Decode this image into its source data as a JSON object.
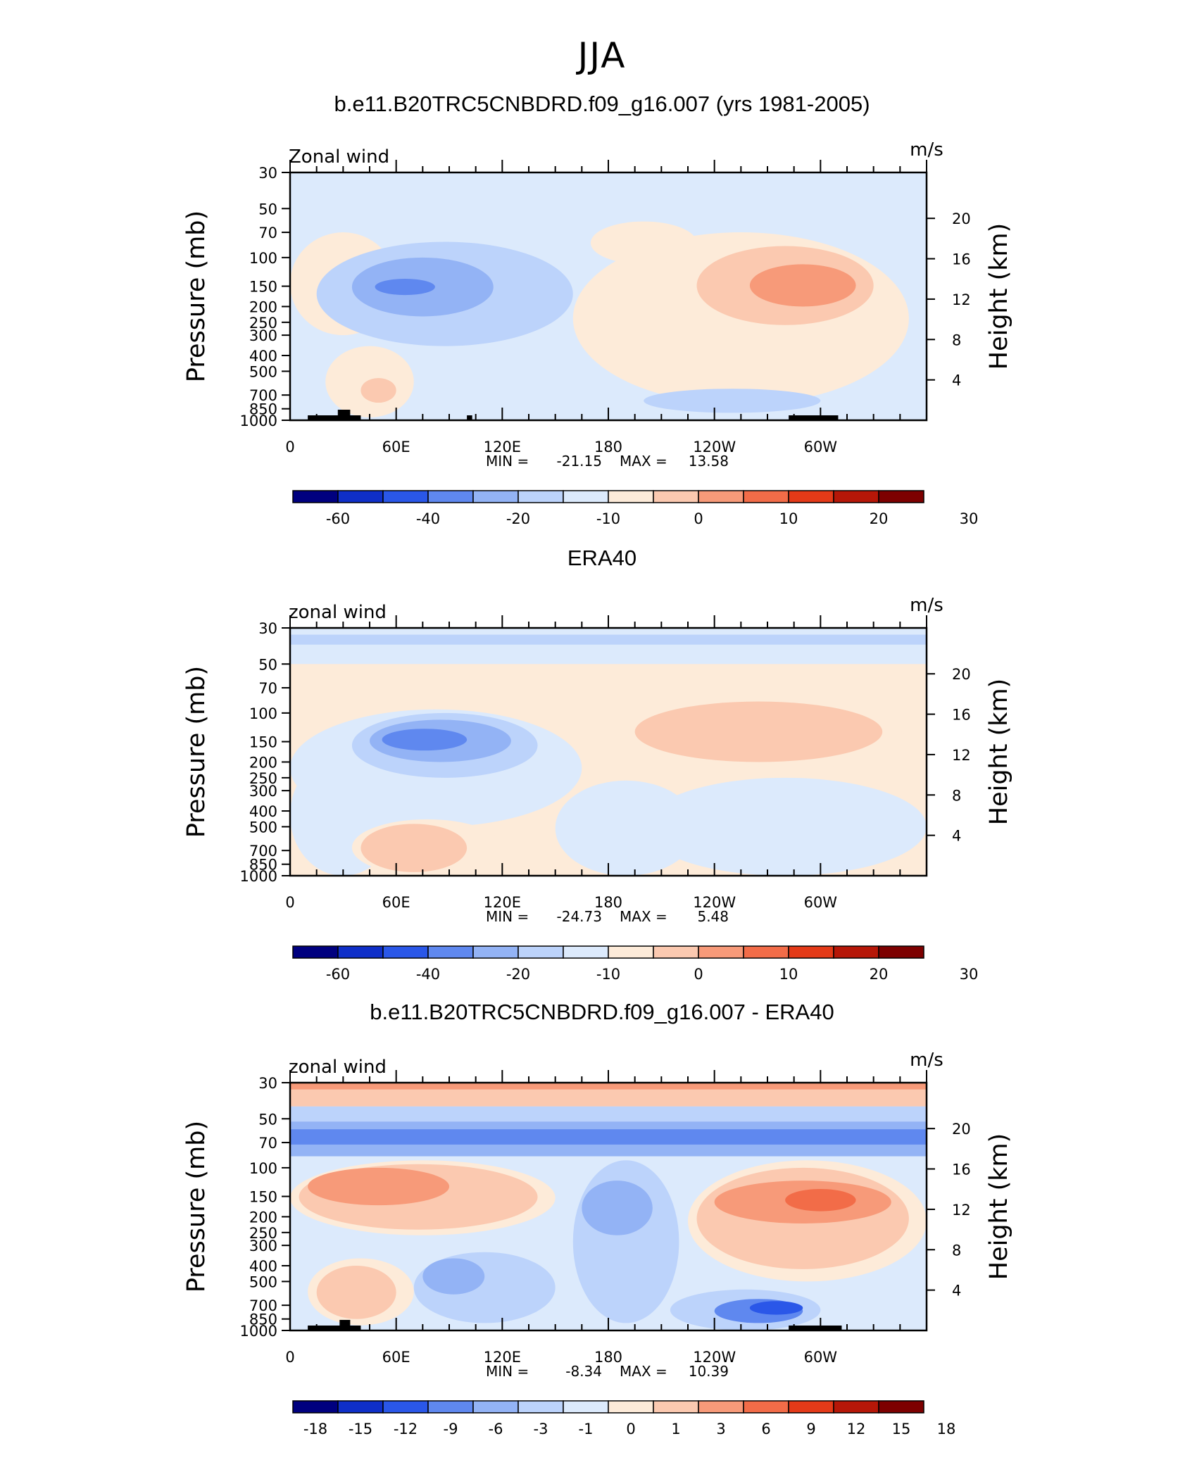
{
  "figure": {
    "title": "JJA"
  },
  "x_tick_labels": [
    "0",
    "60E",
    "120E",
    "180",
    "120W",
    "60W"
  ],
  "y_tick_labels": [
    "30",
    "50",
    "70",
    "100",
    "150",
    "200",
    "250",
    "300",
    "400",
    "500",
    "700",
    "850",
    "1000"
  ],
  "y2_tick_labels": [
    "20",
    "16",
    "12",
    "8",
    "4"
  ],
  "ylabel": "Pressure (mb)",
  "y2label": "Height (km)",
  "units": "m/s",
  "colors": {
    "abs_scale": [
      "#00007f",
      "#0f2fc8",
      "#2a57e8",
      "#5f88ef",
      "#93b3f5",
      "#bcd3fb",
      "#dceafc",
      "#fdebd9",
      "#fbc9b0",
      "#f79a79",
      "#f26c48",
      "#e43a18",
      "#b61708",
      "#7d0000"
    ],
    "diff_scale": [
      "#00007f",
      "#0f2fc8",
      "#2a57e8",
      "#5f88ef",
      "#93b3f5",
      "#bcd3fb",
      "#dceafc",
      "#fdebd9",
      "#fbc9b0",
      "#f79a79",
      "#f26c48",
      "#e43a18",
      "#b61708",
      "#7d0000"
    ],
    "land_mask": "#000000"
  },
  "panels": [
    {
      "title": "b.e11.B20TRC5CNBDRD.f09_g16.007 (yrs 1981-2005)",
      "variable": "Zonal wind",
      "stats": {
        "min_label": "MIN =",
        "min_value": "-21.15",
        "max_label": "MAX =",
        "max_value": "13.58"
      },
      "colorbar_labels": [
        "-60",
        "-40",
        "-20",
        "-10",
        "0",
        "10",
        "20",
        "30"
      ]
    },
    {
      "title": "ERA40",
      "variable": "zonal wind",
      "stats": {
        "min_label": "MIN =",
        "min_value": "-24.73",
        "max_label": "MAX =",
        "max_value": "5.48"
      },
      "colorbar_labels": [
        "-60",
        "-40",
        "-20",
        "-10",
        "0",
        "10",
        "20",
        "30"
      ]
    },
    {
      "title": "b.e11.B20TRC5CNBDRD.f09_g16.007 - ERA40",
      "variable": "zonal wind",
      "stats": {
        "min_label": "MIN =",
        "min_value": "-8.34",
        "max_label": "MAX =",
        "max_value": "10.39"
      },
      "colorbar_labels": [
        "-18",
        "-15",
        "-12",
        "-9",
        "-6",
        "-3",
        "-1",
        "0",
        "1",
        "3",
        "6",
        "9",
        "12",
        "15",
        "18"
      ]
    }
  ],
  "chart_data": [
    {
      "type": "heatmap",
      "title": "b.e11.B20TRC5CNBDRD.f09_g16.007 (yrs 1981-2005)",
      "subtitle": "JJA",
      "variable": "Zonal wind",
      "units": "m/s",
      "x_axis": {
        "label": "",
        "ticks": [
          "0",
          "60E",
          "120E",
          "180",
          "120W",
          "60W"
        ]
      },
      "y_axis": {
        "label": "Pressure (mb)",
        "ticks": [
          30,
          50,
          70,
          100,
          150,
          200,
          250,
          300,
          400,
          500,
          700,
          850,
          1000
        ]
      },
      "y2_axis": {
        "label": "Height (km)",
        "ticks": [
          20,
          16,
          12,
          8,
          4
        ]
      },
      "min": -21.15,
      "max": 13.58,
      "colorbar_levels": [
        -60,
        -40,
        -20,
        -10,
        0,
        10,
        20,
        30
      ]
    },
    {
      "type": "heatmap",
      "title": "ERA40",
      "variable": "zonal wind",
      "units": "m/s",
      "x_axis": {
        "label": "",
        "ticks": [
          "0",
          "60E",
          "120E",
          "180",
          "120W",
          "60W"
        ]
      },
      "y_axis": {
        "label": "Pressure (mb)",
        "ticks": [
          30,
          50,
          70,
          100,
          150,
          200,
          250,
          300,
          400,
          500,
          700,
          850,
          1000
        ]
      },
      "y2_axis": {
        "label": "Height (km)",
        "ticks": [
          20,
          16,
          12,
          8,
          4
        ]
      },
      "min": -24.73,
      "max": 5.48,
      "colorbar_levels": [
        -60,
        -40,
        -20,
        -10,
        0,
        10,
        20,
        30
      ]
    },
    {
      "type": "heatmap",
      "title": "b.e11.B20TRC5CNBDRD.f09_g16.007 - ERA40",
      "variable": "zonal wind",
      "units": "m/s",
      "x_axis": {
        "label": "",
        "ticks": [
          "0",
          "60E",
          "120E",
          "180",
          "120W",
          "60W"
        ]
      },
      "y_axis": {
        "label": "Pressure (mb)",
        "ticks": [
          30,
          50,
          70,
          100,
          150,
          200,
          250,
          300,
          400,
          500,
          700,
          850,
          1000
        ]
      },
      "y2_axis": {
        "label": "Height (km)",
        "ticks": [
          20,
          16,
          12,
          8,
          4
        ]
      },
      "min": -8.34,
      "max": 10.39,
      "colorbar_levels": [
        -18,
        -15,
        -12,
        -9,
        -6,
        -3,
        -1,
        0,
        1,
        3,
        6,
        9,
        12,
        15,
        18
      ]
    }
  ]
}
